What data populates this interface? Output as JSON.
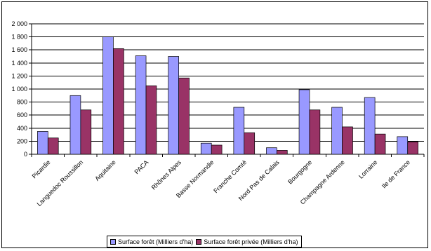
{
  "chart_data": {
    "type": "bar",
    "categories": [
      "Picardie",
      "Languedoc Roussillon",
      "Aquitaine",
      "PACA",
      "Rhônes Alpes",
      "Basse Normandie",
      "Franche Comté",
      "Nord Pas de Calais",
      "Bourgogne",
      "Champagne Ardenne",
      "Lorraine",
      "Ile de France"
    ],
    "series": [
      {
        "name": "Surface forêt (Milliers d'ha)",
        "color": "#9999ff",
        "values": [
          350,
          900,
          1800,
          1510,
          1500,
          170,
          720,
          100,
          990,
          720,
          870,
          270
        ]
      },
      {
        "name": "Surface forêt privée (Milliers d'ha)",
        "color": "#993366",
        "values": [
          250,
          680,
          1620,
          1050,
          1170,
          140,
          330,
          60,
          680,
          420,
          310,
          190
        ]
      }
    ],
    "yticks": [
      "0",
      "200",
      "400",
      "600",
      "800",
      "1 000",
      "1 200",
      "1 400",
      "1 600",
      "1 800",
      "2 000"
    ],
    "ylim": [
      0,
      2000
    ],
    "grid": true,
    "legend_position": "bottom",
    "title": "",
    "xlabel": "",
    "ylabel": ""
  }
}
